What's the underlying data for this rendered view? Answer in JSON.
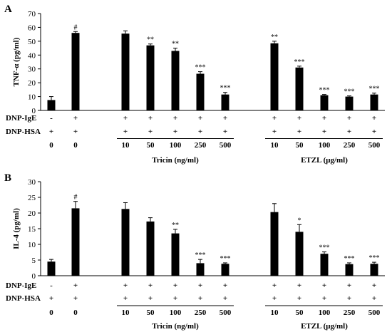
{
  "chart_data": [
    {
      "type": "bar",
      "panel": "A",
      "ylabel": "TNF-α (pg/ml)",
      "ylim": [
        0,
        70
      ],
      "yticks": [
        0,
        10,
        20,
        30,
        40,
        50,
        60,
        70
      ],
      "values": [
        7.5,
        56,
        55.5,
        47,
        43,
        26.5,
        11.5,
        48.5,
        31,
        11,
        10,
        11.5
      ],
      "errors": [
        2.5,
        1,
        2,
        1,
        2,
        1.5,
        1.5,
        1.5,
        1,
        0.5,
        0.5,
        1
      ],
      "annotations": [
        "",
        "#",
        "",
        "**",
        "**",
        "***",
        "***",
        "**",
        "***",
        "***",
        "***",
        "***"
      ],
      "dnp_ige": [
        "-",
        "+",
        "+",
        "+",
        "+",
        "+",
        "+",
        "+",
        "+",
        "+",
        "+",
        "+"
      ],
      "dnp_hsa": [
        "+",
        "+",
        "+",
        "+",
        "+",
        "+",
        "+",
        "+",
        "+",
        "+",
        "+",
        "+"
      ],
      "concentrations": [
        "0",
        "0",
        "10",
        "50",
        "100",
        "250",
        "500",
        "10",
        "50",
        "100",
        "250",
        "500"
      ],
      "row_labels": [
        "DNP-IgE",
        "DNP-HSA"
      ],
      "groups": [
        "Tricin (ng/ml)",
        "ETZL (μg/ml)"
      ],
      "grid": false
    },
    {
      "type": "bar",
      "panel": "B",
      "ylabel": "IL-4 (pg/ml)",
      "ylim": [
        0,
        30
      ],
      "yticks": [
        0,
        5,
        10,
        15,
        20,
        25,
        30
      ],
      "values": [
        4.5,
        21.5,
        21.3,
        17.3,
        13.5,
        4,
        3.8,
        20.3,
        14,
        7,
        3.7,
        3.8
      ],
      "errors": [
        0.7,
        2.2,
        2,
        1.2,
        1.3,
        1.2,
        0.3,
        2.7,
        2.3,
        0.6,
        0.4,
        0.5
      ],
      "annotations": [
        "",
        "#",
        "",
        "",
        "**",
        "***",
        "***",
        "",
        "*",
        "***",
        "***",
        "***"
      ],
      "dnp_ige": [
        "-",
        "+",
        "+",
        "+",
        "+",
        "+",
        "+",
        "+",
        "+",
        "+",
        "+",
        "+"
      ],
      "dnp_hsa": [
        "+",
        "+",
        "+",
        "+",
        "+",
        "+",
        "+",
        "+",
        "+",
        "+",
        "+",
        "+"
      ],
      "concentrations": [
        "0",
        "0",
        "10",
        "50",
        "100",
        "250",
        "500",
        "10",
        "50",
        "100",
        "250",
        "500"
      ],
      "row_labels": [
        "DNP-IgE",
        "DNP-HSA"
      ],
      "groups": [
        "Tricin (ng/ml)",
        "ETZL (μg/ml)"
      ],
      "grid": false
    }
  ]
}
